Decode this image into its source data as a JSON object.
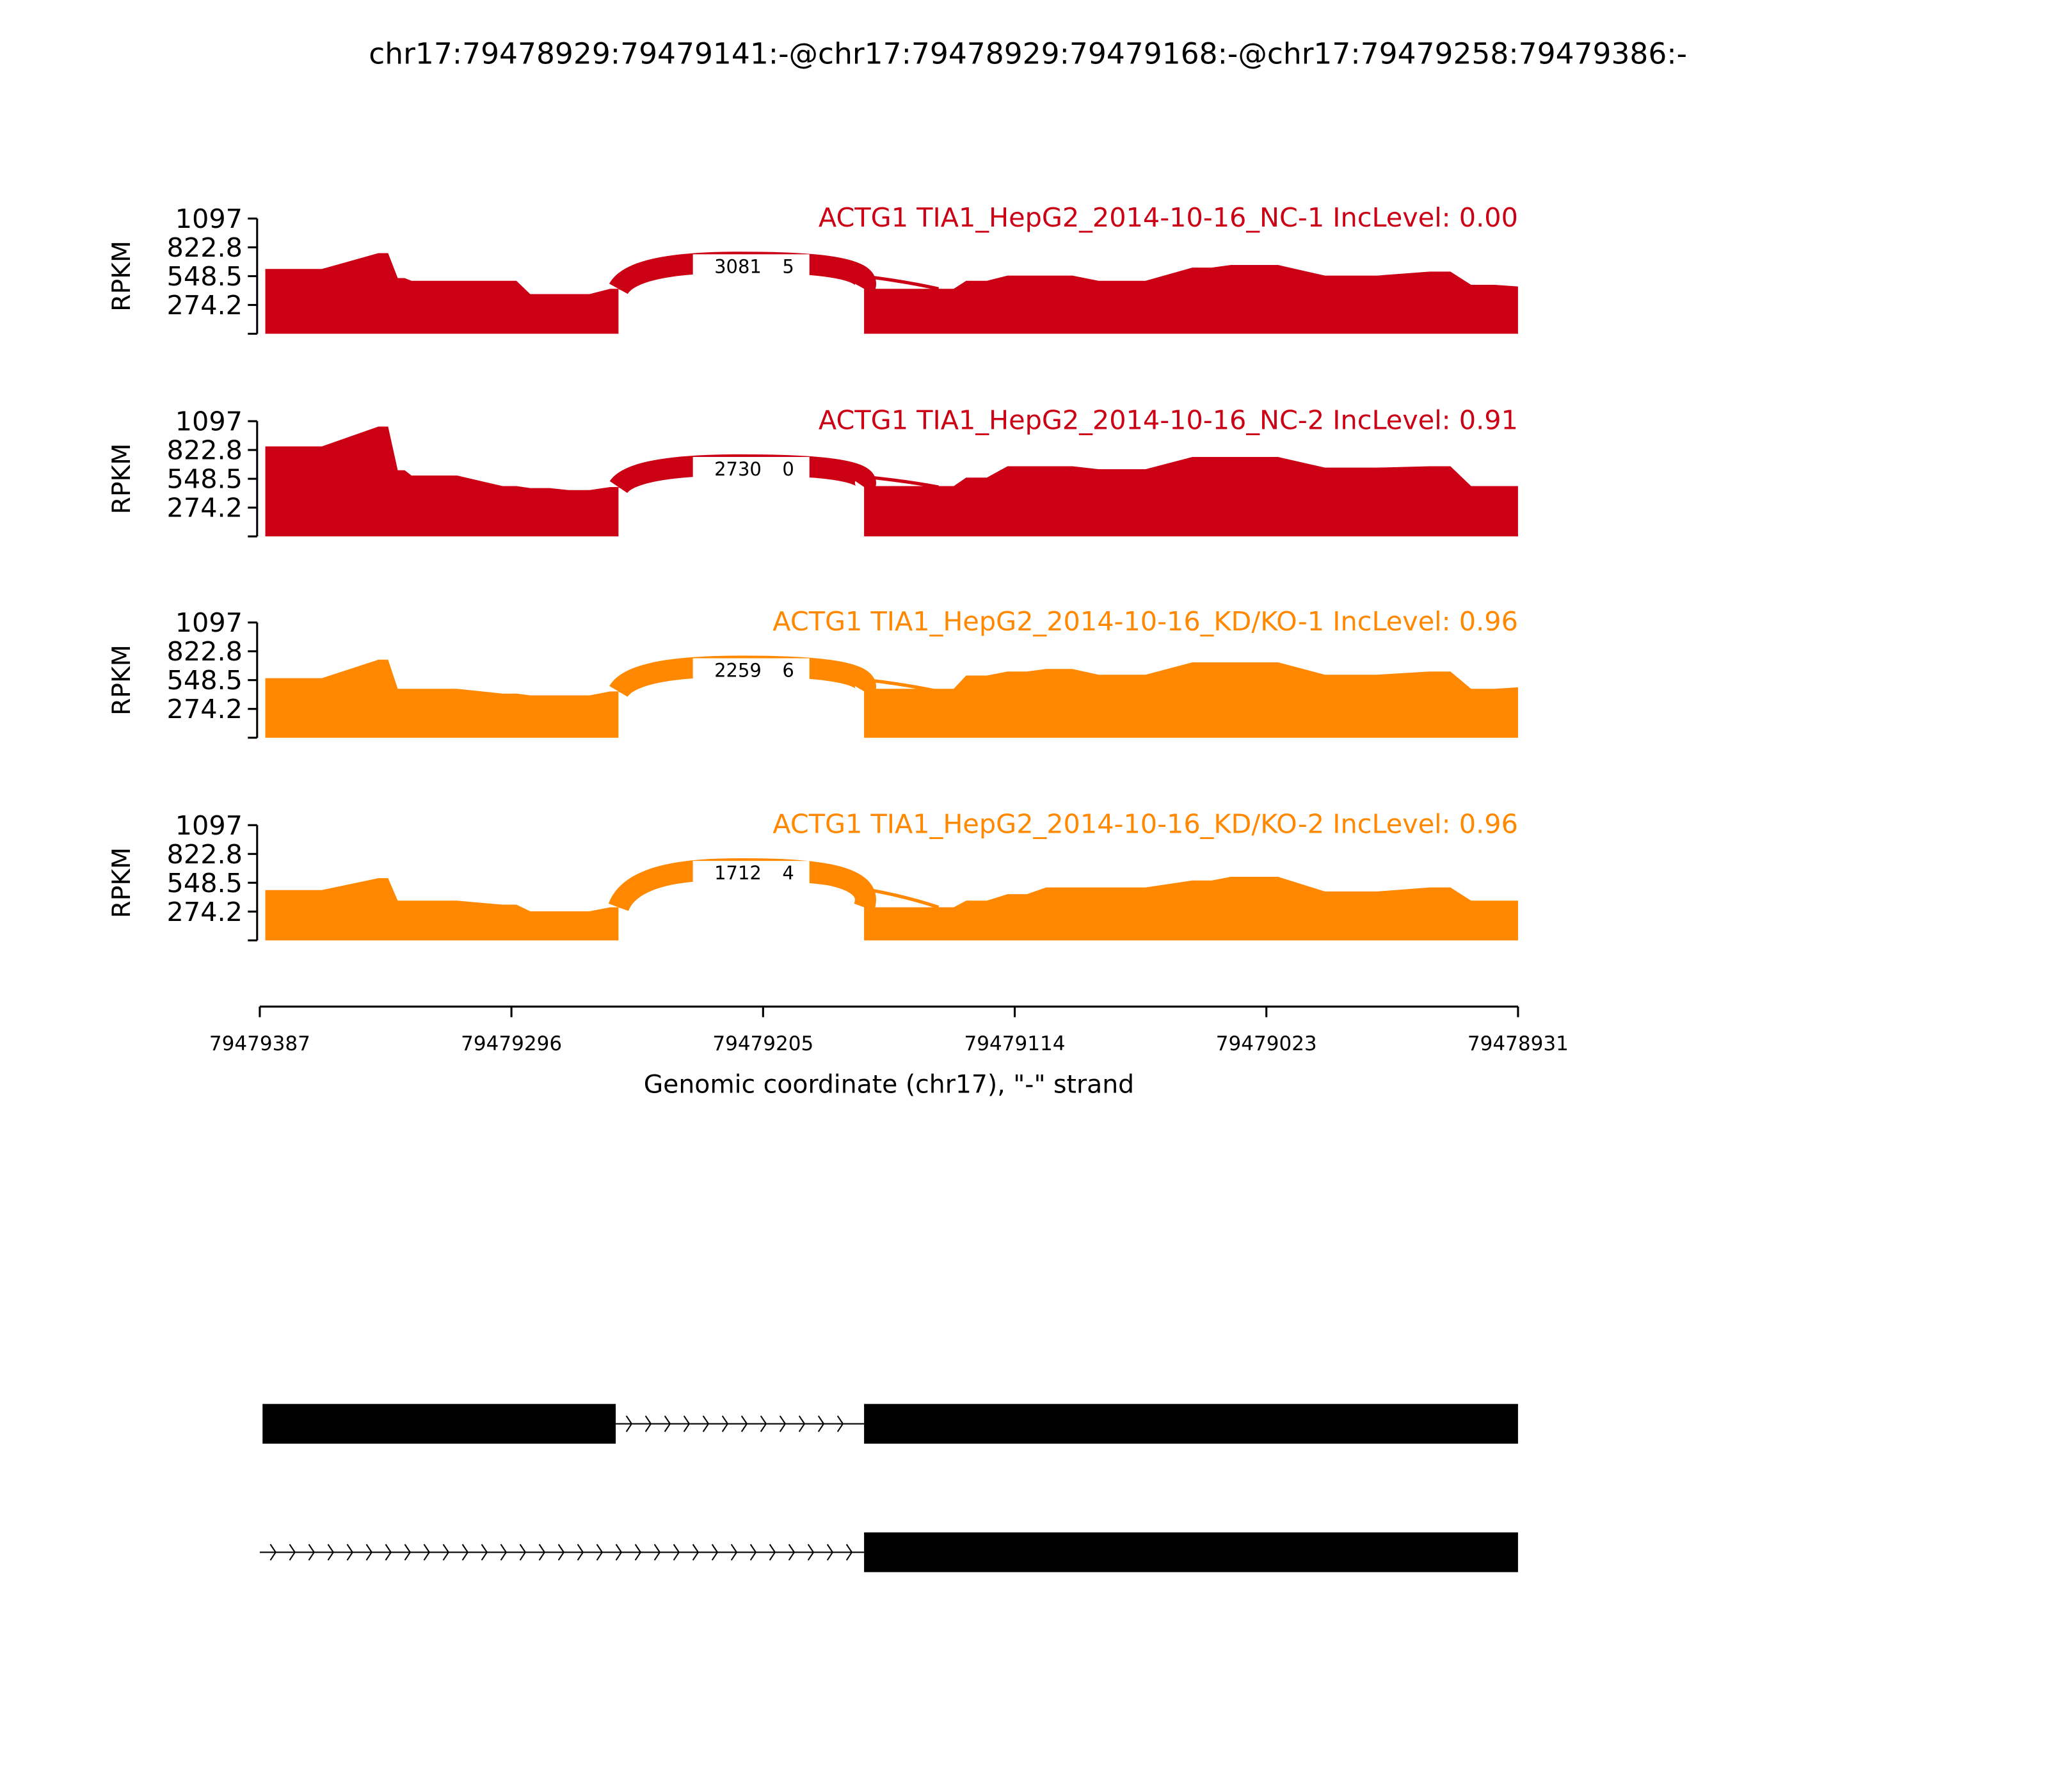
{
  "chart_data": {
    "type": "area",
    "title": "chr17:79478929:79479141:-@chr17:79478929:79479168:-@chr17:79479258:79479386:-",
    "xlabel": "Genomic coordinate (chr17), \"-\" strand",
    "ylabel": "RPKM",
    "xlim": [
      79479387,
      79478931
    ],
    "ylim": [
      0,
      1097
    ],
    "x_ticks": [
      "79479387",
      "79479296",
      "79479205",
      "79479114",
      "79479023",
      "79478931"
    ],
    "y_ticks": [
      "1097",
      "822.8",
      "548.5",
      "274.2"
    ],
    "coverage_coords": [
      79479385,
      79479344,
      79479337,
      79479332,
      79479299,
      79479289,
      79479275,
      79479260,
      79479257,
      79479168,
      79479164,
      79479140,
      79479131,
      79479116,
      79479102,
      79479083,
      79479049,
      79479035,
      79479001,
      79478963,
      79478948,
      79478931
    ],
    "junctions": [
      {
        "from": 79479257,
        "to": 79479168
      },
      {
        "from": 79479257,
        "to": 79479141
      }
    ],
    "series": [
      {
        "name": "ACTG1 TIA1_HepG2_2014-10-16_NC-1 IncLevel: 0.00",
        "color": "#cc0014",
        "values": [
          617,
          768,
          530,
          504,
          504,
          378,
          378,
          428,
          428,
          428,
          428,
          428,
          504,
          554,
          554,
          504,
          630,
          655,
          554,
          592,
          466,
          450
        ],
        "junction_counts": [
          "3081",
          "5"
        ]
      },
      {
        "name": "ACTG1 TIA1_HepG2_2014-10-16_NC-2 IncLevel: 0.91",
        "color": "#cc0014",
        "values": [
          857,
          1046,
          630,
          580,
          479,
          460,
          441,
          470,
          470,
          479,
          479,
          479,
          560,
          668,
          668,
          640,
          756,
          756,
          655,
          668,
          479,
          479
        ],
        "junction_counts": [
          "2730",
          "0"
        ]
      },
      {
        "name": "ACTG1 TIA1_HepG2_2014-10-16_KD/KO-1 IncLevel: 0.96",
        "color": "#ff8800",
        "values": [
          567,
          743,
          466,
          466,
          420,
          403,
          403,
          441,
          441,
          466,
          466,
          466,
          592,
          630,
          655,
          600,
          718,
          718,
          600,
          630,
          466,
          480
        ],
        "junction_counts": [
          "2259",
          "6"
        ]
      },
      {
        "name": "ACTG1 TIA1_HepG2_2014-10-16_KD/KO-2 IncLevel: 0.96",
        "color": "#ff8800",
        "values": [
          479,
          592,
          378,
          378,
          340,
          277,
          277,
          315,
          315,
          315,
          315,
          315,
          378,
          440,
          504,
          504,
          570,
          605,
          466,
          504,
          378,
          378
        ],
        "junction_counts": [
          "1712",
          "4"
        ]
      }
    ],
    "gene_models": [
      {
        "exons": [
          [
            79479386,
            79479258
          ],
          [
            79479168,
            79478931
          ]
        ]
      },
      {
        "exons": [
          [
            79479168,
            79478931
          ]
        ],
        "line_start": 79479387
      }
    ]
  }
}
